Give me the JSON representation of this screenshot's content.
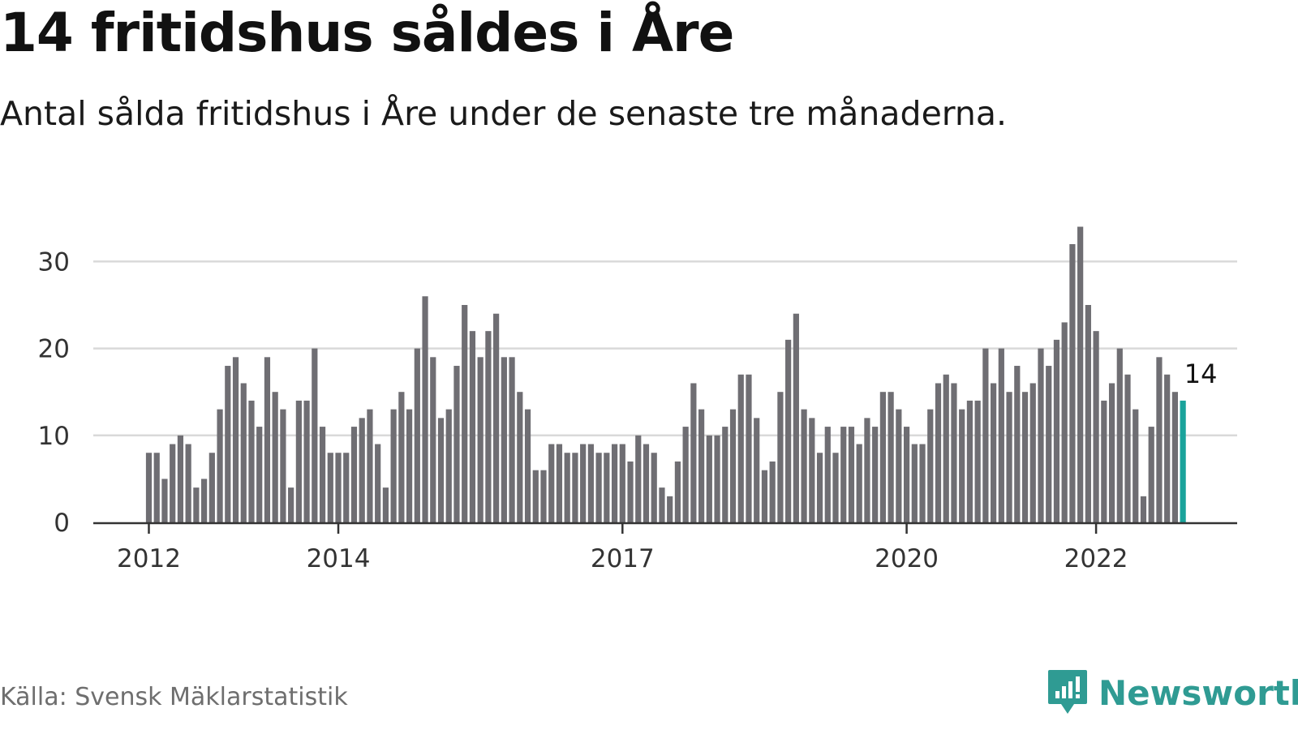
{
  "header": {
    "title": "14 fritidshus såldes i Åre",
    "subtitle": "Antal sålda fritidshus i Åre under de senaste tre månaderna."
  },
  "footer": {
    "source": "Källa: Svensk Mäklarstatistik",
    "brand": "Newsworthy"
  },
  "colors": {
    "bar": "#6f6e73",
    "highlight": "#1aa39b",
    "grid": "#d9d9d9",
    "axis": "#333333",
    "brand": "#2f9b93"
  },
  "chart_data": {
    "type": "bar",
    "title": "14 fritidshus såldes i Åre",
    "subtitle": "Antal sålda fritidshus i Åre under de senaste tre månaderna.",
    "xlabel": "",
    "ylabel": "",
    "ylim": [
      0,
      34
    ],
    "yticks": [
      0,
      10,
      20,
      30
    ],
    "grid": true,
    "x_ticks": [
      {
        "label": "2012",
        "index": 0
      },
      {
        "label": "2014",
        "index": 24
      },
      {
        "label": "2017",
        "index": 60
      },
      {
        "label": "2020",
        "index": 96
      },
      {
        "label": "2022",
        "index": 120
      }
    ],
    "values": [
      8,
      8,
      5,
      9,
      10,
      9,
      4,
      5,
      8,
      13,
      18,
      19,
      16,
      14,
      11,
      19,
      15,
      13,
      4,
      14,
      14,
      20,
      11,
      8,
      8,
      8,
      11,
      12,
      13,
      9,
      4,
      13,
      15,
      13,
      20,
      26,
      19,
      12,
      13,
      18,
      25,
      22,
      19,
      22,
      24,
      19,
      19,
      15,
      13,
      6,
      6,
      9,
      9,
      8,
      8,
      9,
      9,
      8,
      8,
      9,
      9,
      7,
      10,
      9,
      8,
      4,
      3,
      7,
      11,
      16,
      13,
      10,
      10,
      11,
      13,
      17,
      17,
      12,
      6,
      7,
      15,
      21,
      24,
      13,
      12,
      8,
      11,
      8,
      11,
      11,
      9,
      12,
      11,
      15,
      15,
      13,
      11,
      9,
      9,
      13,
      16,
      17,
      16,
      13,
      14,
      14,
      20,
      16,
      20,
      15,
      18,
      15,
      16,
      20,
      18,
      21,
      23,
      32,
      34,
      25,
      22,
      14,
      16,
      20,
      17,
      13,
      3,
      11,
      19,
      17,
      15,
      14
    ],
    "highlight_last": true,
    "last_value_label": "14"
  }
}
